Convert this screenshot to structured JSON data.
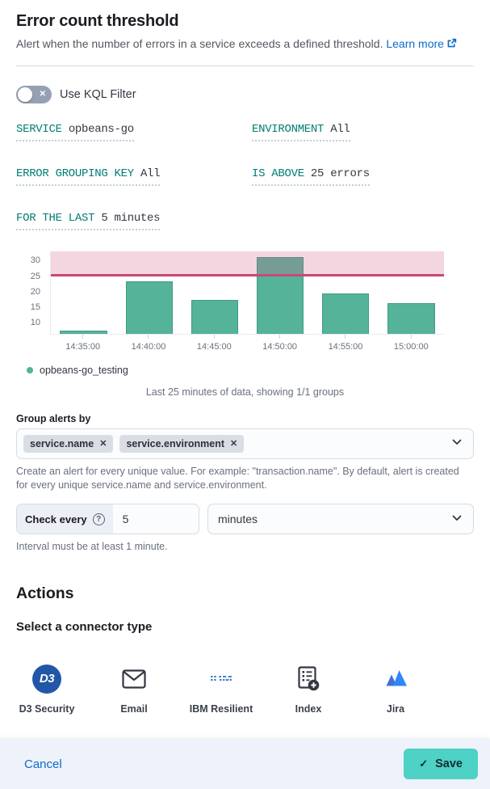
{
  "header": {
    "title": "Error count threshold",
    "description": "Alert when the number of errors in a service exceeds a defined threshold.",
    "learn_more_label": "Learn more"
  },
  "kql_toggle": {
    "label": "Use KQL Filter",
    "state": "off"
  },
  "expression_fields": [
    {
      "label": "SERVICE",
      "value": "opbeans-go"
    },
    {
      "label": "ENVIRONMENT",
      "value": "All"
    },
    {
      "label": "ERROR GROUPING KEY",
      "value": "All"
    },
    {
      "label": "IS ABOVE",
      "value": "25 errors"
    },
    {
      "label": "FOR THE LAST",
      "value": "5 minutes"
    }
  ],
  "chart_data": {
    "type": "bar",
    "categories": [
      "14:35:00",
      "14:40:00",
      "14:45:00",
      "14:50:00",
      "14:55:00",
      "15:00:00"
    ],
    "values": [
      7,
      23,
      17,
      31,
      19,
      16
    ],
    "threshold": 25,
    "y_ticks": [
      10,
      15,
      20,
      25,
      30
    ],
    "ylim": [
      6,
      33
    ],
    "grid": false,
    "legend": [
      "opbeans-go_testing"
    ],
    "legend_position": "bottom-left",
    "bar_color": "#54B399",
    "threshold_line_color": "#C64A74",
    "threshold_fill_color": "rgba(211,96,134,0.26)",
    "caption": "Last 25 minutes of data, showing 1/1 groups"
  },
  "group_alerts": {
    "label": "Group alerts by",
    "tags": [
      "service.name",
      "service.environment"
    ],
    "help": "Create an alert for every unique value. For example: \"transaction.name\". By default, alert is created for every unique service.name and service.environment."
  },
  "check_every": {
    "label": "Check every",
    "value": "5",
    "unit": "minutes",
    "help": "Interval must be at least 1 minute."
  },
  "actions": {
    "title": "Actions",
    "subtitle": "Select a connector type",
    "connectors": [
      {
        "name": "D3 Security",
        "icon": "d3"
      },
      {
        "name": "Email",
        "icon": "email"
      },
      {
        "name": "IBM Resilient",
        "icon": "ibm"
      },
      {
        "name": "Index",
        "icon": "index"
      },
      {
        "name": "Jira",
        "icon": "jira"
      }
    ]
  },
  "footer": {
    "cancel_label": "Cancel",
    "save_label": "Save"
  },
  "colors": {
    "label_teal": "#017D73",
    "link_blue": "#0b6bcb",
    "save_button": "#4dd2c5",
    "bar_green": "#54B399",
    "threshold_pink": "#C64A74",
    "footer_background": "#eef2fa"
  }
}
